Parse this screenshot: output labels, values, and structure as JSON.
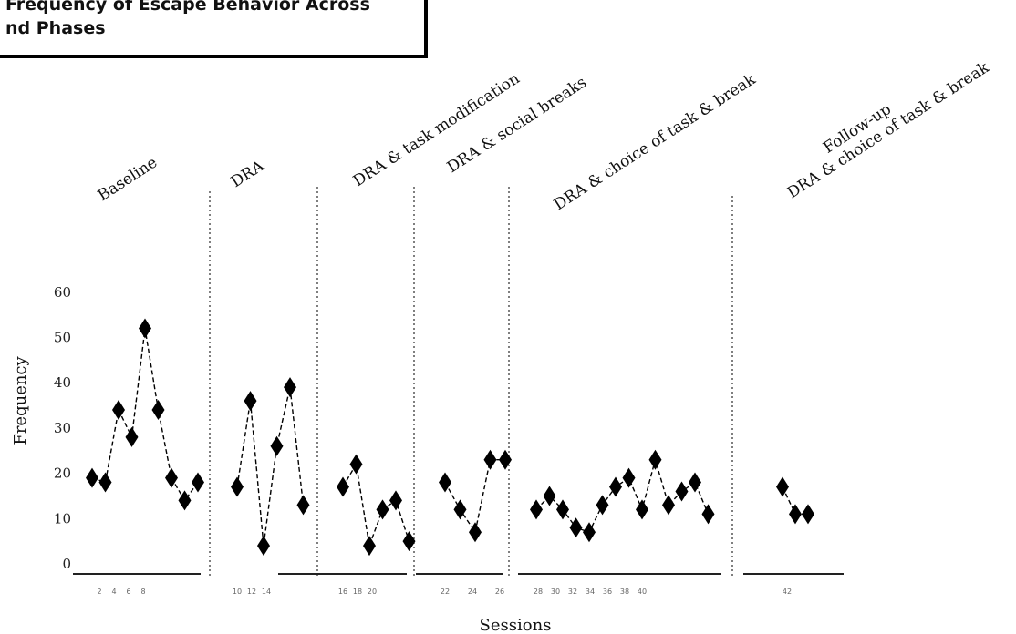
{
  "header": {
    "title_line_1": "Frequency of Escape Behavior Across",
    "title_line_2": "nd Phases"
  },
  "chart_data": {
    "type": "line",
    "ylabel": "Frequency",
    "xlabel": "Sessions",
    "ylim": [
      0,
      60
    ],
    "yticks": [
      0,
      10,
      20,
      30,
      40,
      50,
      60
    ],
    "grid": false,
    "series_color": "#000000",
    "marker": "diamond",
    "line_style": "dashed",
    "phases": [
      {
        "label": "Baseline",
        "values": [
          19,
          18,
          34,
          28,
          52,
          34,
          19,
          14,
          18
        ],
        "x_ticks": [
          "2",
          "4",
          "6",
          "8"
        ]
      },
      {
        "label": "DRA",
        "values": [
          17,
          36,
          4,
          26,
          39,
          13
        ],
        "x_ticks": [
          "10",
          "12",
          "14"
        ]
      },
      {
        "label": "DRA & task modification",
        "values": [
          17,
          22,
          4,
          12,
          14,
          5
        ],
        "x_ticks": [
          "16",
          "18",
          "20"
        ]
      },
      {
        "label": "DRA & social breaks",
        "values": [
          18,
          12,
          7,
          23,
          23
        ],
        "x_ticks": [
          "22",
          "24",
          "26"
        ]
      },
      {
        "label": "DRA & choice of task & break",
        "values": [
          12,
          15,
          12,
          8,
          7,
          13,
          17,
          19,
          12,
          23,
          13,
          16,
          18,
          11
        ],
        "x_ticks": [
          "28",
          "30",
          "32",
          "34",
          "36",
          "38",
          "40"
        ]
      },
      {
        "label_line_1": "Follow-up",
        "label_line_2": "DRA & choice of task & break",
        "values": [
          17,
          11,
          11
        ],
        "x_ticks": [
          "42"
        ]
      }
    ]
  }
}
